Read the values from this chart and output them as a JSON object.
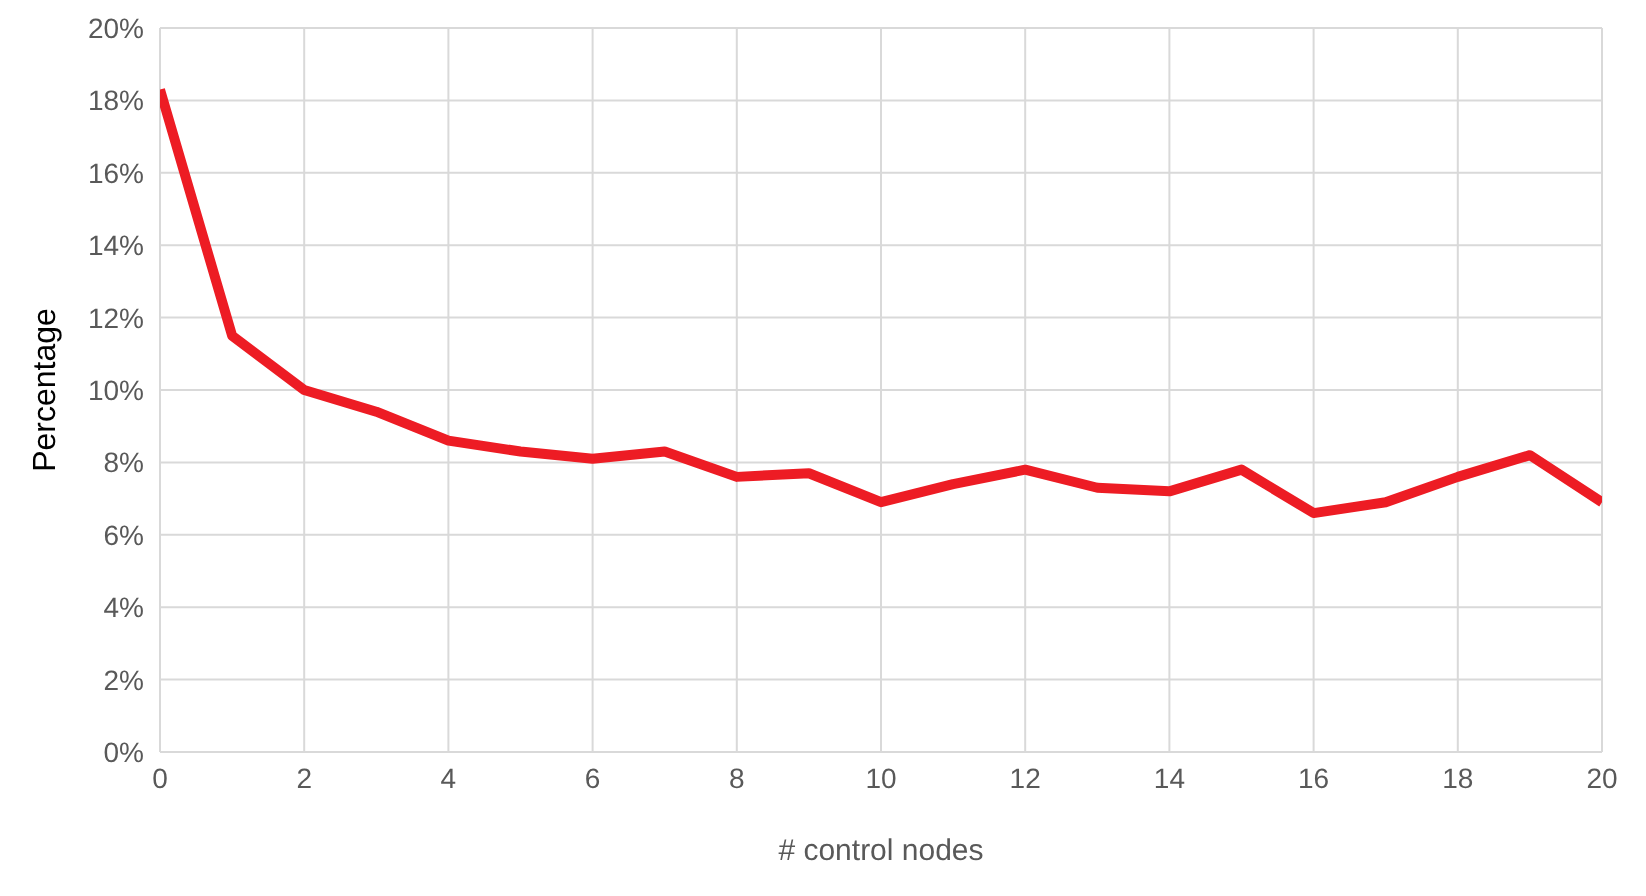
{
  "chart_data": {
    "type": "line",
    "xlabel": "# control nodes",
    "ylabel": "Percentage",
    "x": [
      0,
      1,
      2,
      3,
      4,
      5,
      6,
      7,
      8,
      9,
      10,
      11,
      12,
      13,
      14,
      15,
      16,
      17,
      18,
      19,
      20
    ],
    "series": [
      {
        "color": "#ed1c24",
        "values": [
          18.3,
          11.5,
          10.0,
          9.4,
          8.6,
          8.3,
          8.1,
          8.3,
          7.6,
          7.7,
          6.9,
          7.4,
          7.8,
          7.3,
          7.2,
          7.8,
          6.6,
          6.9,
          7.6,
          8.2,
          6.9
        ]
      }
    ],
    "xlim": [
      0,
      20
    ],
    "xticks": [
      0,
      2,
      4,
      6,
      8,
      10,
      12,
      14,
      16,
      18,
      20
    ],
    "ylim": [
      0,
      20
    ],
    "yticks": [
      {
        "value": 0,
        "label": "0%"
      },
      {
        "value": 2,
        "label": "2%"
      },
      {
        "value": 4,
        "label": "4%"
      },
      {
        "value": 6,
        "label": "6%"
      },
      {
        "value": 8,
        "label": "8%"
      },
      {
        "value": 10,
        "label": "10%"
      },
      {
        "value": 12,
        "label": "12%"
      },
      {
        "value": 14,
        "label": "14%"
      },
      {
        "value": 16,
        "label": "16%"
      },
      {
        "value": 18,
        "label": "18%"
      },
      {
        "value": 20,
        "label": "20%"
      }
    ],
    "grid": true
  }
}
